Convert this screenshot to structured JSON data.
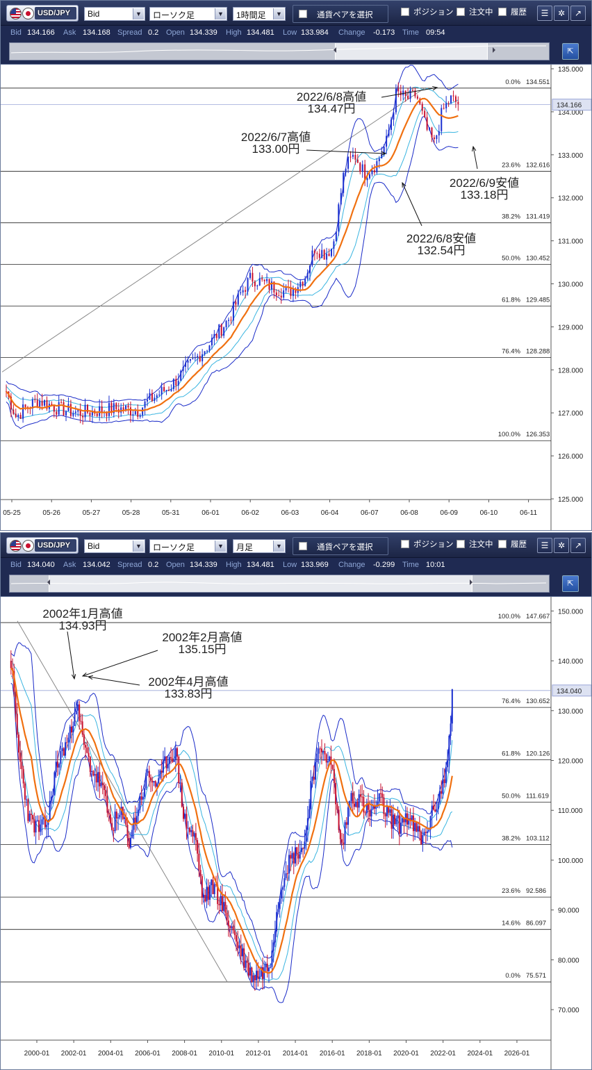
{
  "panels": [
    {
      "toolbar": {
        "pair": "USD/JPY",
        "price_type": "Bid",
        "chart_style": "ローソク足",
        "timeframe": "1時間足",
        "select_pair": "通貨ペアを選択",
        "chk_position": "ポジション",
        "chk_orders": "注文中",
        "chk_history": "履歴"
      },
      "quote": {
        "bid_label": "Bid",
        "bid": "134.166",
        "ask_label": "Ask",
        "ask": "134.168",
        "spread_label": "Spread",
        "spread": "0.2",
        "open_label": "Open",
        "open": "134.339",
        "high_label": "High",
        "high": "134.481",
        "low_label": "Low",
        "low": "133.984",
        "change_label": "Change",
        "change": "-0.173",
        "time_label": "Time",
        "time": "09:54"
      }
    },
    {
      "toolbar": {
        "pair": "USD/JPY",
        "price_type": "Bid",
        "chart_style": "ローソク足",
        "timeframe": "月足",
        "select_pair": "通貨ペアを選択",
        "chk_position": "ポジション",
        "chk_orders": "注文中",
        "chk_history": "履歴"
      },
      "quote": {
        "bid_label": "Bid",
        "bid": "134.040",
        "ask_label": "Ask",
        "ask": "134.042",
        "spread_label": "Spread",
        "spread": "0.2",
        "open_label": "Open",
        "open": "134.339",
        "high_label": "High",
        "high": "134.481",
        "low_label": "Low",
        "low": "133.969",
        "change_label": "Change",
        "change": "-0.299",
        "time_label": "Time",
        "time": "10:01"
      }
    }
  ],
  "chart_data": [
    {
      "type": "candlestick",
      "timeframe": "1時間足",
      "ylim": [
        125.0,
        135.0
      ],
      "yticks": [
        "125.000",
        "126.000",
        "127.000",
        "128.000",
        "129.000",
        "130.000",
        "131.000",
        "132.000",
        "133.000",
        "134.000",
        "135.000"
      ],
      "xticks": [
        "05-25",
        "05-26",
        "05-27",
        "05-28",
        "05-31",
        "06-01",
        "06-02",
        "06-03",
        "06-04",
        "06-07",
        "06-08",
        "06-09",
        "06-10",
        "06-11"
      ],
      "current_price": "134.166",
      "fib_levels": [
        {
          "pct": "0.0%",
          "value": 134.551,
          "label": "134.551"
        },
        {
          "pct": "23.6%",
          "value": 132.616,
          "label": "132.616"
        },
        {
          "pct": "38.2%",
          "value": 131.419,
          "label": "131.419"
        },
        {
          "pct": "50.0%",
          "value": 130.452,
          "label": "130.452"
        },
        {
          "pct": "61.8%",
          "value": 129.485,
          "label": "129.485"
        },
        {
          "pct": "76.4%",
          "value": 128.288,
          "label": "128.288"
        },
        {
          "pct": "100.0%",
          "value": 126.353,
          "label": "126.353"
        }
      ],
      "price_path": [
        [
          0,
          127.5
        ],
        [
          0.25,
          126.9
        ],
        [
          0.4,
          127.05
        ],
        [
          0.8,
          127.3
        ],
        [
          1.3,
          127.1
        ],
        [
          1.8,
          127.0
        ],
        [
          2.3,
          127.05
        ],
        [
          2.8,
          127.1
        ],
        [
          3.3,
          127.05
        ],
        [
          3.6,
          127.3
        ],
        [
          4.1,
          127.6
        ],
        [
          4.6,
          128.1
        ],
        [
          5.1,
          128.6
        ],
        [
          5.6,
          129.2
        ],
        [
          5.9,
          129.8
        ],
        [
          6.15,
          130.15
        ],
        [
          6.5,
          130.0
        ],
        [
          6.9,
          129.85
        ],
        [
          7.1,
          129.8
        ],
        [
          7.5,
          130.15
        ],
        [
          7.75,
          130.85
        ],
        [
          8.0,
          130.7
        ],
        [
          8.2,
          130.85
        ],
        [
          8.5,
          132.7
        ],
        [
          8.75,
          133.0
        ],
        [
          9.0,
          132.55
        ],
        [
          9.3,
          132.8
        ],
        [
          9.55,
          133.3
        ],
        [
          9.8,
          134.45
        ],
        [
          10.05,
          134.3
        ],
        [
          10.3,
          134.4
        ],
        [
          10.55,
          133.6
        ],
        [
          10.75,
          133.25
        ],
        [
          10.95,
          134.0
        ],
        [
          11.15,
          134.3
        ],
        [
          11.35,
          134.2
        ]
      ],
      "annotations": [
        {
          "date": "2022/6/8高値",
          "price": "134.47円"
        },
        {
          "date": "2022/6/7高値",
          "price": "133.00円"
        },
        {
          "date": "2022/6/9安値",
          "price": "133.18円"
        },
        {
          "date": "2022/6/8安値",
          "price": "132.54円"
        }
      ]
    },
    {
      "type": "candlestick",
      "timeframe": "月足",
      "ylim": [
        65.0,
        152.0
      ],
      "yticks": [
        "70.000",
        "80.000",
        "90.000",
        "100.000",
        "110.000",
        "120.000",
        "130.000",
        "140.000",
        "150.000"
      ],
      "xticks": [
        "2000-01",
        "2002-01",
        "2004-01",
        "2006-01",
        "2008-01",
        "2010-01",
        "2012-01",
        "2014-01",
        "2016-01",
        "2018-01",
        "2020-01",
        "2022-01",
        "2024-01",
        "2026-01"
      ],
      "current_price": "134.040",
      "fib_levels": [
        {
          "pct": "100.0%",
          "value": 147.667,
          "label": "147.667"
        },
        {
          "pct": "76.4%",
          "value": 130.652,
          "label": "130.652"
        },
        {
          "pct": "61.8%",
          "value": 120.126,
          "label": "120.126"
        },
        {
          "pct": "50.0%",
          "value": 111.619,
          "label": "111.619"
        },
        {
          "pct": "38.2%",
          "value": 103.112,
          "label": "103.112"
        },
        {
          "pct": "23.6%",
          "value": 92.586,
          "label": "92.586"
        },
        {
          "pct": "14.6%",
          "value": 86.097,
          "label": "86.097"
        },
        {
          "pct": "0.0%",
          "value": 75.571,
          "label": "75.571"
        }
      ],
      "price_path": [
        [
          1998.6,
          140
        ],
        [
          1999.0,
          122
        ],
        [
          1999.6,
          108
        ],
        [
          2000.2,
          106
        ],
        [
          2000.6,
          108
        ],
        [
          2001.0,
          118
        ],
        [
          2001.4,
          122
        ],
        [
          2001.8,
          125
        ],
        [
          2002.1,
          132
        ],
        [
          2002.6,
          122
        ],
        [
          2003.0,
          118
        ],
        [
          2003.5,
          115
        ],
        [
          2004.0,
          107
        ],
        [
          2004.6,
          109
        ],
        [
          2005.0,
          104
        ],
        [
          2005.6,
          112
        ],
        [
          2006.0,
          117
        ],
        [
          2006.6,
          115
        ],
        [
          2007.0,
          120
        ],
        [
          2007.5,
          122
        ],
        [
          2008.0,
          108
        ],
        [
          2008.6,
          104
        ],
        [
          2009.0,
          92
        ],
        [
          2009.6,
          95
        ],
        [
          2010.0,
          91
        ],
        [
          2010.6,
          86
        ],
        [
          2011.0,
          82
        ],
        [
          2011.6,
          77
        ],
        [
          2012.0,
          77
        ],
        [
          2012.6,
          79
        ],
        [
          2013.0,
          90
        ],
        [
          2013.4,
          98
        ],
        [
          2013.9,
          101
        ],
        [
          2014.5,
          103
        ],
        [
          2014.9,
          117
        ],
        [
          2015.5,
          123
        ],
        [
          2016.0,
          118
        ],
        [
          2016.5,
          102
        ],
        [
          2017.0,
          113
        ],
        [
          2017.5,
          112
        ],
        [
          2018.0,
          109
        ],
        [
          2018.6,
          112
        ],
        [
          2019.0,
          109
        ],
        [
          2019.6,
          107
        ],
        [
          2020.0,
          109
        ],
        [
          2020.5,
          106
        ],
        [
          2020.9,
          104
        ],
        [
          2021.5,
          110
        ],
        [
          2021.9,
          114
        ],
        [
          2022.2,
          118
        ],
        [
          2022.45,
          131
        ],
        [
          2022.5,
          134
        ]
      ],
      "annotations": [
        {
          "date": "2002年1月高値",
          "price": "134.93円"
        },
        {
          "date": "2002年2月高値",
          "price": "135.15円"
        },
        {
          "date": "2002年4月高値",
          "price": "133.83円"
        }
      ]
    }
  ],
  "colors": {
    "up": "#1a2fd0",
    "down": "#c8102e",
    "ma": "#f07010",
    "band_inner": "#38b4e0",
    "band_outer": "#1a2bc8",
    "fib": "#000000",
    "trend": "#888888"
  }
}
